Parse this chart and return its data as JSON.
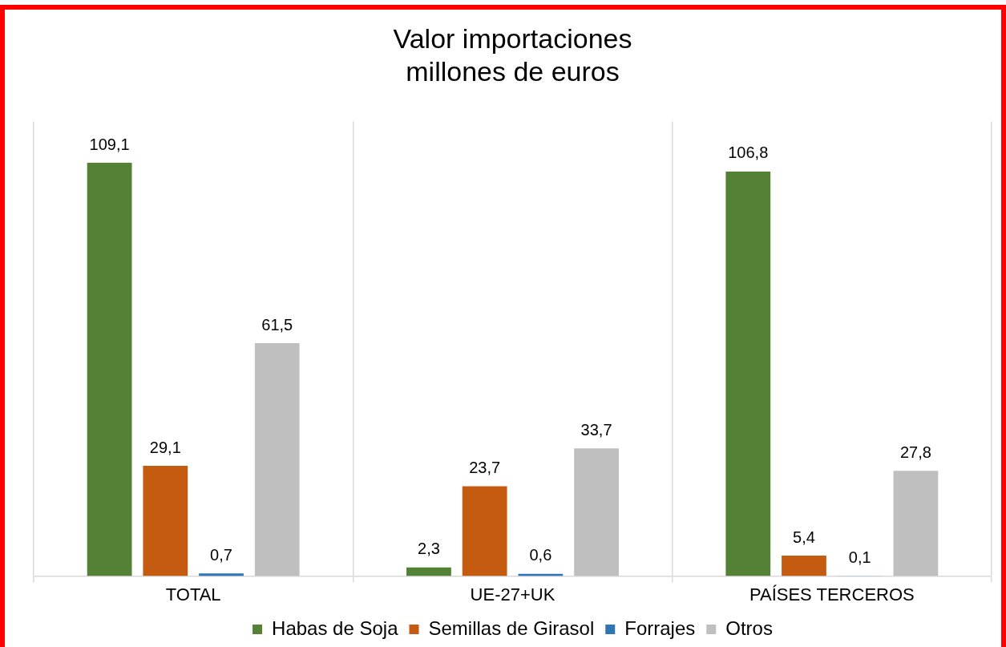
{
  "chart_data": {
    "type": "bar",
    "title": "Valor importaciones",
    "subtitle": "millones de euros",
    "categories": [
      "TOTAL",
      "UE-27+UK",
      "PAÍSES TERCEROS"
    ],
    "series": [
      {
        "name": "Habas de Soja",
        "color": "#538135",
        "values": [
          109.1,
          2.3,
          106.8
        ],
        "value_labels": [
          "109,1",
          "2,3",
          "106,8"
        ]
      },
      {
        "name": "Semillas de Girasol",
        "color": "#c55a11",
        "values": [
          29.1,
          23.7,
          5.4
        ],
        "value_labels": [
          "29,1",
          "23,7",
          "5,4"
        ]
      },
      {
        "name": "Forrajes",
        "color": "#2e75b6",
        "values": [
          0.7,
          0.6,
          0.1
        ],
        "value_labels": [
          "0,7",
          "0,6",
          "0,1"
        ]
      },
      {
        "name": "Otros",
        "color": "#bfbfbf",
        "values": [
          61.5,
          33.7,
          27.8
        ],
        "value_labels": [
          "61,5",
          "33,7",
          "27,8"
        ]
      }
    ],
    "grid": "x",
    "legend": "bottom"
  }
}
